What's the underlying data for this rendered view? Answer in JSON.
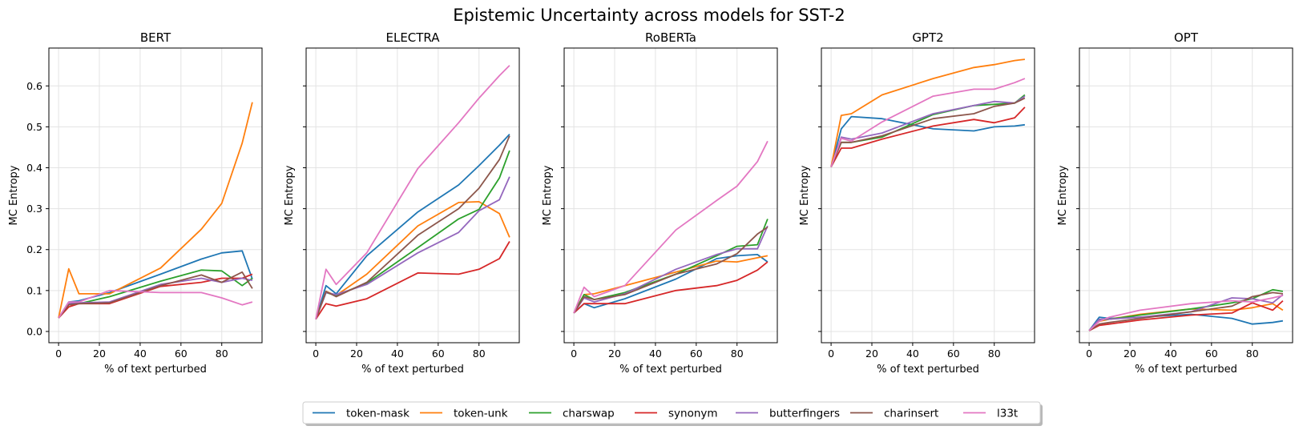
{
  "figure": {
    "suptitle": "Epistemic Uncertainty across models for SST-2"
  },
  "colors": {
    "token-mask": "#1f77b4",
    "token-unk": "#ff7f0e",
    "charswap": "#2ca02c",
    "synonym": "#d62728",
    "butterfingers": "#9467bd",
    "charinsert": "#8c564b",
    "l33t": "#e377c2"
  },
  "legend": {
    "position": "bottom-center",
    "entries": [
      "token-mask",
      "token-unk",
      "charswap",
      "synonym",
      "butterfingers",
      "charinsert",
      "l33t"
    ]
  },
  "chart_data": [
    {
      "type": "line",
      "title": "BERT",
      "xlabel": "% of text perturbed",
      "ylabel": "MC Entropy",
      "xlim": [
        -4.75,
        99.75
      ],
      "ylim": [
        -0.0275,
        0.6925
      ],
      "xticks": [
        0,
        20,
        40,
        60,
        80
      ],
      "yticks": [
        0.0,
        0.1,
        0.2,
        0.3,
        0.4,
        0.5,
        0.6
      ],
      "ytick_labels_shown": true,
      "grid": true,
      "x": [
        0,
        5,
        10,
        25,
        50,
        70,
        80,
        90,
        95
      ],
      "series": [
        {
          "name": "token-mask",
          "values": [
            0.033,
            0.072,
            0.075,
            0.095,
            0.14,
            0.177,
            0.192,
            0.197,
            0.128
          ]
        },
        {
          "name": "token-unk",
          "values": [
            0.033,
            0.153,
            0.092,
            0.092,
            0.155,
            0.25,
            0.313,
            0.46,
            0.56
          ]
        },
        {
          "name": "charswap",
          "values": [
            0.033,
            0.065,
            0.068,
            0.085,
            0.123,
            0.15,
            0.148,
            0.112,
            0.13
          ]
        },
        {
          "name": "synonym",
          "values": [
            0.033,
            0.06,
            0.068,
            0.068,
            0.11,
            0.12,
            0.13,
            0.13,
            0.14
          ]
        },
        {
          "name": "butterfingers",
          "values": [
            0.033,
            0.068,
            0.07,
            0.072,
            0.115,
            0.13,
            0.12,
            0.13,
            0.125
          ]
        },
        {
          "name": "charinsert",
          "values": [
            0.033,
            0.065,
            0.068,
            0.07,
            0.112,
            0.138,
            0.12,
            0.145,
            0.105
          ]
        },
        {
          "name": "l33t",
          "values": [
            0.033,
            0.072,
            0.072,
            0.1,
            0.095,
            0.095,
            0.082,
            0.065,
            0.072
          ]
        }
      ]
    },
    {
      "type": "line",
      "title": "ELECTRA",
      "xlabel": "% of text perturbed",
      "ylabel": "MC Entropy",
      "xlim": [
        -4.75,
        99.75
      ],
      "ylim": [
        -0.0275,
        0.6925
      ],
      "xticks": [
        0,
        20,
        40,
        60,
        80
      ],
      "yticks": [
        0.0,
        0.1,
        0.2,
        0.3,
        0.4,
        0.5,
        0.6
      ],
      "ytick_labels_shown": false,
      "grid": true,
      "x": [
        0,
        5,
        10,
        25,
        50,
        70,
        80,
        90,
        95
      ],
      "series": [
        {
          "name": "token-mask",
          "values": [
            0.03,
            0.112,
            0.092,
            0.185,
            0.292,
            0.358,
            0.405,
            0.455,
            0.482
          ]
        },
        {
          "name": "token-unk",
          "values": [
            0.03,
            0.098,
            0.088,
            0.14,
            0.258,
            0.315,
            0.317,
            0.288,
            0.23
          ]
        },
        {
          "name": "charswap",
          "values": [
            0.03,
            0.095,
            0.088,
            0.118,
            0.205,
            0.275,
            0.298,
            0.375,
            0.442
          ]
        },
        {
          "name": "synonym",
          "values": [
            0.03,
            0.068,
            0.062,
            0.08,
            0.143,
            0.14,
            0.152,
            0.178,
            0.22
          ]
        },
        {
          "name": "butterfingers",
          "values": [
            0.03,
            0.095,
            0.09,
            0.115,
            0.192,
            0.242,
            0.295,
            0.322,
            0.378
          ]
        },
        {
          "name": "charinsert",
          "values": [
            0.03,
            0.098,
            0.085,
            0.12,
            0.235,
            0.3,
            0.35,
            0.42,
            0.478
          ]
        },
        {
          "name": "l33t",
          "values": [
            0.03,
            0.152,
            0.115,
            0.192,
            0.398,
            0.51,
            0.57,
            0.625,
            0.65
          ]
        }
      ]
    },
    {
      "type": "line",
      "title": "RoBERTa",
      "xlabel": "% of text perturbed",
      "ylabel": "MC Entropy",
      "xlim": [
        -4.75,
        99.75
      ],
      "ylim": [
        -0.0275,
        0.6925
      ],
      "xticks": [
        0,
        20,
        40,
        60,
        80
      ],
      "yticks": [
        0.0,
        0.1,
        0.2,
        0.3,
        0.4,
        0.5,
        0.6
      ],
      "ytick_labels_shown": false,
      "grid": true,
      "x": [
        0,
        5,
        10,
        25,
        50,
        70,
        80,
        90,
        95
      ],
      "series": [
        {
          "name": "token-mask",
          "values": [
            0.045,
            0.068,
            0.058,
            0.08,
            0.128,
            0.178,
            0.185,
            0.188,
            0.17
          ]
        },
        {
          "name": "token-unk",
          "values": [
            0.045,
            0.09,
            0.092,
            0.112,
            0.145,
            0.172,
            0.17,
            0.18,
            0.185
          ]
        },
        {
          "name": "charswap",
          "values": [
            0.045,
            0.09,
            0.078,
            0.095,
            0.14,
            0.185,
            0.208,
            0.212,
            0.275
          ]
        },
        {
          "name": "synonym",
          "values": [
            0.045,
            0.068,
            0.068,
            0.068,
            0.1,
            0.112,
            0.125,
            0.15,
            0.17
          ]
        },
        {
          "name": "butterfingers",
          "values": [
            0.045,
            0.082,
            0.072,
            0.092,
            0.152,
            0.188,
            0.202,
            0.202,
            0.258
          ]
        },
        {
          "name": "charinsert",
          "values": [
            0.045,
            0.085,
            0.078,
            0.09,
            0.14,
            0.165,
            0.19,
            0.238,
            0.255
          ]
        },
        {
          "name": "l33t",
          "values": [
            0.045,
            0.108,
            0.085,
            0.112,
            0.248,
            0.32,
            0.355,
            0.415,
            0.465
          ]
        }
      ]
    },
    {
      "type": "line",
      "title": "GPT2",
      "xlabel": "% of text perturbed",
      "ylabel": "MC Entropy",
      "xlim": [
        -4.75,
        99.75
      ],
      "ylim": [
        -0.0275,
        0.6925
      ],
      "xticks": [
        0,
        20,
        40,
        60,
        80
      ],
      "yticks": [
        0.0,
        0.1,
        0.2,
        0.3,
        0.4,
        0.5,
        0.6
      ],
      "ytick_labels_shown": false,
      "grid": true,
      "x": [
        0,
        5,
        10,
        25,
        50,
        70,
        80,
        90,
        95
      ],
      "series": [
        {
          "name": "token-mask",
          "values": [
            0.402,
            0.495,
            0.525,
            0.52,
            0.495,
            0.49,
            0.5,
            0.502,
            0.505
          ]
        },
        {
          "name": "token-unk",
          "values": [
            0.402,
            0.528,
            0.532,
            0.578,
            0.618,
            0.645,
            0.652,
            0.662,
            0.665
          ]
        },
        {
          "name": "charswap",
          "values": [
            0.402,
            0.462,
            0.462,
            0.475,
            0.53,
            0.552,
            0.555,
            0.558,
            0.578
          ]
        },
        {
          "name": "synonym",
          "values": [
            0.402,
            0.448,
            0.448,
            0.47,
            0.502,
            0.518,
            0.51,
            0.522,
            0.548
          ]
        },
        {
          "name": "butterfingers",
          "values": [
            0.402,
            0.475,
            0.47,
            0.485,
            0.532,
            0.552,
            0.562,
            0.558,
            0.575
          ]
        },
        {
          "name": "charinsert",
          "values": [
            0.402,
            0.462,
            0.462,
            0.478,
            0.52,
            0.532,
            0.55,
            0.558,
            0.57
          ]
        },
        {
          "name": "l33t",
          "values": [
            0.402,
            0.472,
            0.465,
            0.512,
            0.575,
            0.592,
            0.592,
            0.608,
            0.618
          ]
        }
      ]
    },
    {
      "type": "line",
      "title": "OPT",
      "xlabel": "% of text perturbed",
      "ylabel": "MC Entropy",
      "xlim": [
        -4.75,
        99.75
      ],
      "ylim": [
        -0.0275,
        0.6925
      ],
      "xticks": [
        0,
        20,
        40,
        60,
        80
      ],
      "yticks": [
        0.0,
        0.1,
        0.2,
        0.3,
        0.4,
        0.5,
        0.6
      ],
      "ytick_labels_shown": false,
      "grid": true,
      "x": [
        0,
        5,
        10,
        25,
        50,
        70,
        80,
        90,
        95
      ],
      "series": [
        {
          "name": "token-mask",
          "values": [
            0.002,
            0.035,
            0.032,
            0.035,
            0.042,
            0.032,
            0.018,
            0.022,
            0.026
          ]
        },
        {
          "name": "token-unk",
          "values": [
            0.002,
            0.025,
            0.03,
            0.042,
            0.055,
            0.052,
            0.058,
            0.068,
            0.052
          ]
        },
        {
          "name": "charswap",
          "values": [
            0.002,
            0.028,
            0.03,
            0.04,
            0.055,
            0.07,
            0.08,
            0.102,
            0.098
          ]
        },
        {
          "name": "synonym",
          "values": [
            0.002,
            0.015,
            0.018,
            0.028,
            0.04,
            0.045,
            0.07,
            0.052,
            0.075
          ]
        },
        {
          "name": "butterfingers",
          "values": [
            0.002,
            0.03,
            0.03,
            0.035,
            0.048,
            0.082,
            0.08,
            0.07,
            0.09
          ]
        },
        {
          "name": "charinsert",
          "values": [
            0.002,
            0.018,
            0.022,
            0.032,
            0.048,
            0.062,
            0.085,
            0.095,
            0.092
          ]
        },
        {
          "name": "l33t",
          "values": [
            0.002,
            0.025,
            0.035,
            0.052,
            0.068,
            0.075,
            0.072,
            0.082,
            0.088
          ]
        }
      ]
    }
  ]
}
